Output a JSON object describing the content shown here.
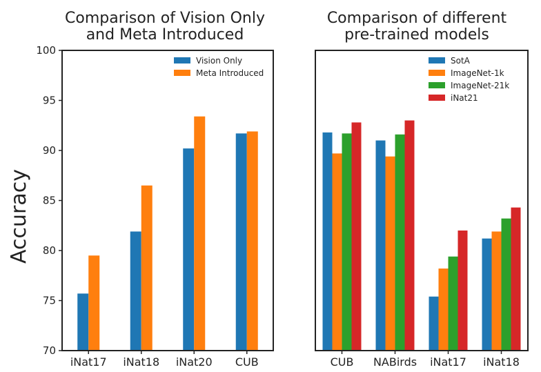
{
  "figure": {
    "ylabel": "Accuracy"
  },
  "chart_data": [
    {
      "type": "bar",
      "title": "Comparison of Vision Only\nand Meta Introduced",
      "xlabel": "",
      "ylabel": "Accuracy",
      "ylim": [
        70,
        100
      ],
      "yticks": [
        70,
        75,
        80,
        85,
        90,
        95,
        100
      ],
      "categories": [
        "iNat17",
        "iNat18",
        "iNat20",
        "CUB"
      ],
      "legend": "top-right",
      "grid": false,
      "series": [
        {
          "name": "Vision Only",
          "color": "#1f77b4",
          "values": [
            75.7,
            81.9,
            90.2,
            91.7
          ]
        },
        {
          "name": "Meta Introduced",
          "color": "#ff7f0e",
          "values": [
            79.5,
            86.5,
            93.4,
            91.9
          ]
        }
      ]
    },
    {
      "type": "bar",
      "title": "Comparison of different\npre-trained models",
      "xlabel": "",
      "ylabel": "",
      "ylim": [
        70,
        100
      ],
      "yticks": [],
      "categories": [
        "CUB",
        "NABirds",
        "iNat17",
        "iNat18"
      ],
      "legend": "top-right",
      "grid": false,
      "series": [
        {
          "name": "SotA",
          "color": "#1f77b4",
          "values": [
            91.8,
            91.0,
            75.4,
            81.2
          ]
        },
        {
          "name": "ImageNet-1k",
          "color": "#ff7f0e",
          "values": [
            89.7,
            89.4,
            78.2,
            81.9
          ]
        },
        {
          "name": "ImageNet-21k",
          "color": "#2ca02c",
          "values": [
            91.7,
            91.6,
            79.4,
            83.2
          ]
        },
        {
          "name": "iNat21",
          "color": "#d62728",
          "values": [
            92.8,
            93.0,
            82.0,
            84.3
          ]
        }
      ]
    }
  ]
}
